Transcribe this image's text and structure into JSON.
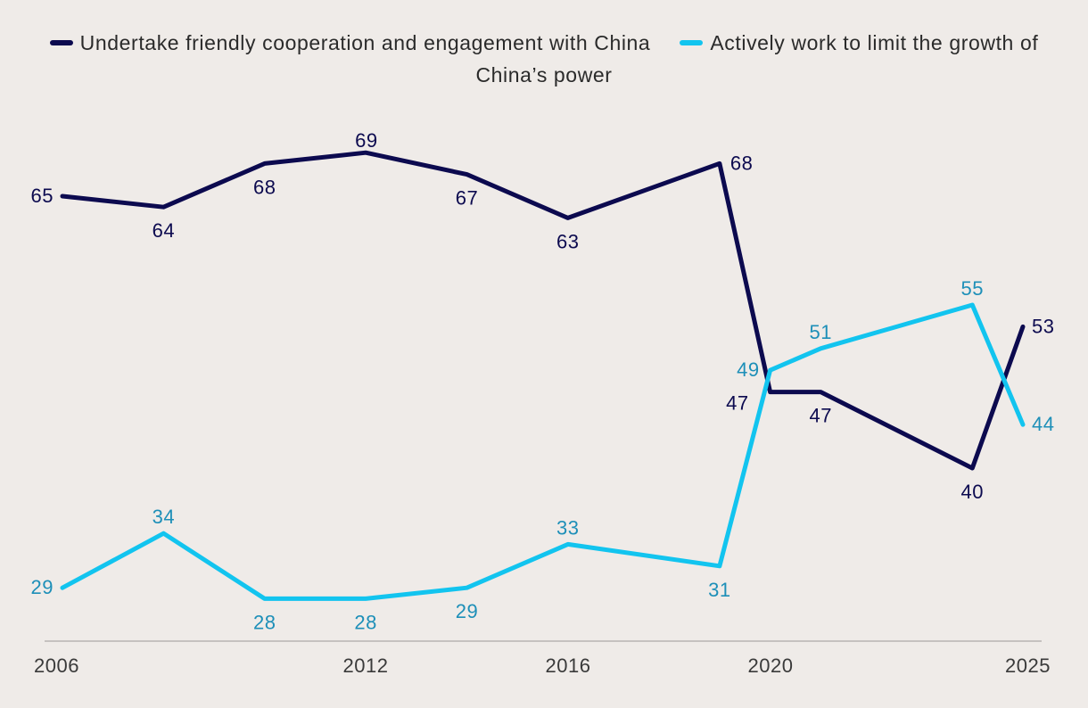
{
  "chart_data": {
    "type": "line",
    "title": "",
    "xlabel": "",
    "ylabel": "",
    "x": [
      2006,
      2008,
      2010,
      2012,
      2014,
      2016,
      2019,
      2020,
      2021,
      2024,
      2025
    ],
    "x_ticks": [
      "2006",
      "2012",
      "2016",
      "2020",
      "2025"
    ],
    "xlim": [
      2005.65,
      2025.4
    ],
    "ylim": [
      0,
      100
    ],
    "grid": false,
    "legend_position": "top-center",
    "series": [
      {
        "name": "Undertake friendly cooperation and engagement with China",
        "color": "#0c0a4f",
        "label_color": "#0c0a4f",
        "values": [
          65,
          64,
          68,
          69,
          67,
          63,
          68,
          47,
          47,
          40,
          53
        ],
        "labels": [
          "65",
          "64",
          "68",
          "69",
          "67",
          "63",
          "68",
          "47",
          "47",
          "40",
          "53"
        ]
      },
      {
        "name": "Actively work to limit the growth of China’s power",
        "color": "#12c4ef",
        "label_color": "#1d8fb8",
        "values": [
          29,
          34,
          28,
          28,
          29,
          33,
          31,
          49,
          51,
          55,
          44
        ],
        "labels": [
          "29",
          "34",
          "28",
          "28",
          "29",
          "33",
          "31",
          "49",
          "51",
          "55",
          "44"
        ]
      }
    ]
  }
}
